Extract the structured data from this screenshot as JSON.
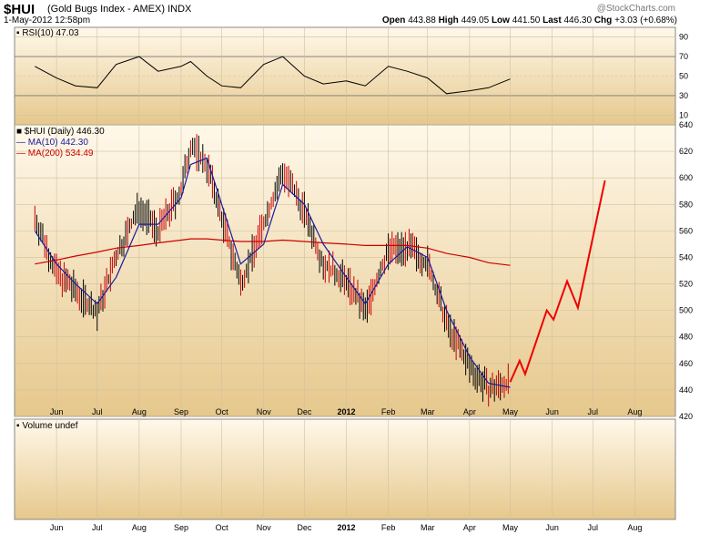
{
  "header": {
    "symbol": "$HUI",
    "name": "(Gold Bugs Index - AMEX)",
    "exchange": "INDX",
    "datetime": "1-May-2012 12:58pm",
    "watermark": "@StockCharts.com",
    "quote": {
      "open_label": "Open",
      "open": "443.88",
      "high_label": "High",
      "high": "449.05",
      "low_label": "Low",
      "low": "441.50",
      "last_label": "Last",
      "last": "446.30",
      "chg_label": "Chg",
      "chg": "+3.03 (+0.68%)"
    }
  },
  "rsi_panel": {
    "label": "RSI(10) 47.03",
    "ticks": [
      90,
      70,
      50,
      30,
      10
    ]
  },
  "price_panel": {
    "legend": {
      "price": "$HUI (Daily) 446.30",
      "ma10": "MA(10) 442.30",
      "ma200": "MA(200) 534.49"
    },
    "ticks": [
      640,
      620,
      600,
      580,
      560,
      540,
      520,
      500,
      480,
      460,
      440,
      420
    ]
  },
  "volume_panel": {
    "label": "Volume undef"
  },
  "x_axis": {
    "months": [
      "Jun",
      "Jul",
      "Aug",
      "Sep",
      "Oct",
      "Nov",
      "Dec",
      "2012",
      "Feb",
      "Mar",
      "Apr",
      "May",
      "Jun",
      "Jul",
      "Aug"
    ]
  },
  "colors": {
    "panel_top": "#fff8ea",
    "panel_bottom": "#e6c88c",
    "price_bar": "#000000",
    "down_bar": "#cc0000",
    "ma10": "#1a1aa0",
    "ma200": "#cc0000",
    "projection": "#ee0000",
    "rsi_line": "#000000",
    "rsi_oversold": "#b07070"
  },
  "chart_data": {
    "type": "line",
    "title": "$HUI (Gold Bugs Index - AMEX) INDX",
    "x": [
      "2011-05-16",
      "2011-06-01",
      "2011-06-15",
      "2011-07-01",
      "2011-07-15",
      "2011-08-01",
      "2011-08-15",
      "2011-09-01",
      "2011-09-08",
      "2011-09-20",
      "2011-10-01",
      "2011-10-15",
      "2011-11-01",
      "2011-11-15",
      "2011-12-01",
      "2011-12-15",
      "2012-01-01",
      "2012-01-15",
      "2012-02-01",
      "2012-02-15",
      "2012-03-01",
      "2012-03-15",
      "2012-04-01",
      "2012-04-15",
      "2012-05-01"
    ],
    "series": [
      {
        "name": "$HUI (Daily)",
        "values": [
          570,
          528,
          515,
          498,
          540,
          578,
          560,
          590,
          625,
          610,
          570,
          520,
          565,
          605,
          575,
          535,
          522,
          500,
          545,
          548,
          535,
          490,
          458,
          440,
          446
        ]
      },
      {
        "name": "MA(10)",
        "values": [
          560,
          535,
          520,
          505,
          525,
          565,
          565,
          585,
          610,
          615,
          580,
          535,
          550,
          595,
          580,
          550,
          525,
          505,
          535,
          548,
          540,
          500,
          465,
          445,
          442
        ]
      },
      {
        "name": "MA(200)",
        "values": [
          535,
          538,
          541,
          544,
          547,
          549,
          551,
          553,
          554,
          554,
          553,
          552,
          552,
          553,
          552,
          551,
          550,
          549,
          549,
          549,
          547,
          543,
          540,
          536,
          534
        ]
      },
      {
        "name": "projection",
        "values": [
          {
            "x": "2012-05-01",
            "y": 446
          },
          {
            "x": "2012-05-08",
            "y": 462
          },
          {
            "x": "2012-05-12",
            "y": 452
          },
          {
            "x": "2012-05-28",
            "y": 500
          },
          {
            "x": "2012-06-02",
            "y": 493
          },
          {
            "x": "2012-06-12",
            "y": 522
          },
          {
            "x": "2012-06-20",
            "y": 502
          },
          {
            "x": "2012-07-10",
            "y": 598
          }
        ]
      }
    ],
    "rsi": {
      "name": "RSI(10)",
      "last": 47.03,
      "values": [
        60,
        48,
        40,
        38,
        62,
        70,
        55,
        60,
        65,
        50,
        40,
        38,
        62,
        70,
        50,
        42,
        45,
        40,
        60,
        55,
        48,
        32,
        35,
        38,
        47
      ]
    },
    "ylim": [
      420,
      640
    ],
    "xlabel": "",
    "ylabel": "",
    "grid": true,
    "legend": "top-left"
  }
}
